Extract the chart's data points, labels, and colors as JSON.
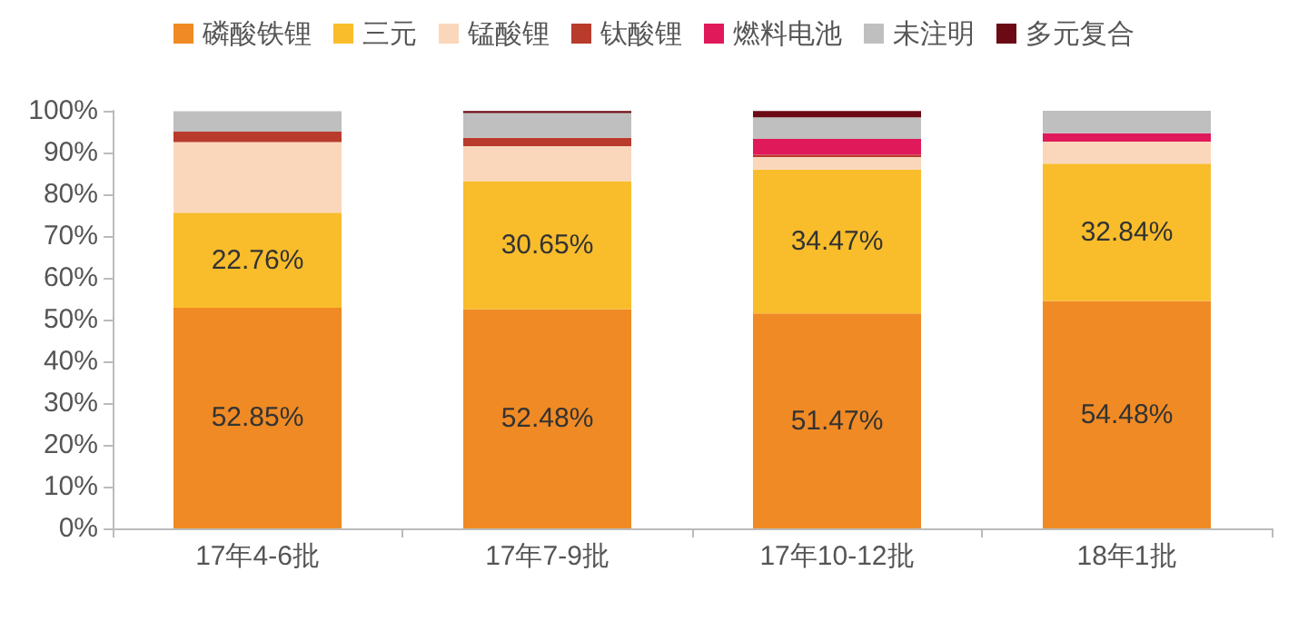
{
  "chart_data": {
    "type": "bar",
    "stacked": true,
    "categories": [
      "17年4-6批",
      "17年7-9批",
      "17年10-12批",
      "18年1批"
    ],
    "series": [
      {
        "name": "磷酸铁锂",
        "color": "#f08a24",
        "values": [
          52.85,
          52.48,
          51.47,
          54.48
        ],
        "value_labels": [
          "52.85%",
          "52.48%",
          "51.47%",
          "54.48%"
        ]
      },
      {
        "name": "三元",
        "color": "#f9bd2b",
        "values": [
          22.76,
          30.65,
          34.47,
          32.84
        ],
        "value_labels": [
          "22.76%",
          "30.65%",
          "34.47%",
          "32.84%"
        ]
      },
      {
        "name": "锰酸锂",
        "color": "#fad7bb",
        "values": [
          16.9,
          8.4,
          3,
          5.3
        ]
      },
      {
        "name": "钛酸锂",
        "color": "#b83b2b",
        "values": [
          2.5,
          2,
          0.5,
          null
        ]
      },
      {
        "name": "燃料电池",
        "color": "#e0195a",
        "values": [
          null,
          null,
          3.8,
          2
        ]
      },
      {
        "name": "未注明",
        "color": "#bfbfbf",
        "values": [
          4.9,
          5.9,
          5.2,
          5.4
        ]
      },
      {
        "name": "多元复合",
        "color": "#6b0a14",
        "values": [
          null,
          0.5,
          1.5,
          null
        ]
      }
    ],
    "ylim": [
      0,
      100
    ],
    "yticks": [
      {
        "value": 0,
        "label": "0%"
      },
      {
        "value": 10,
        "label": "10%"
      },
      {
        "value": 20,
        "label": "20%"
      },
      {
        "value": 30,
        "label": "30%"
      },
      {
        "value": 40,
        "label": "40%"
      },
      {
        "value": 50,
        "label": "50%"
      },
      {
        "value": 60,
        "label": "60%"
      },
      {
        "value": 70,
        "label": "70%"
      },
      {
        "value": 80,
        "label": "80%"
      },
      {
        "value": 90,
        "label": "90%"
      },
      {
        "value": 100,
        "label": "100%"
      }
    ],
    "grid": false,
    "legend": "top"
  }
}
